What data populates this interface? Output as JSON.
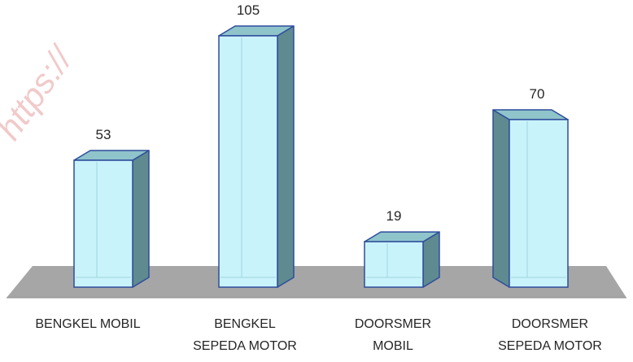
{
  "watermark": "https://",
  "chart_data": {
    "type": "bar",
    "style": "3d-column",
    "categories": [
      [
        "BENGKEL MOBIL"
      ],
      [
        "BENGKEL",
        "SEPEDA MOTOR"
      ],
      [
        "DOORSMER",
        "MOBIL"
      ],
      [
        "DOORSMER",
        "SEPEDA MOTOR"
      ]
    ],
    "values": [
      53,
      105,
      19,
      70
    ],
    "title": "",
    "xlabel": "",
    "ylabel": "",
    "ylim": [
      0,
      105
    ],
    "grid": false,
    "legend": "none",
    "colors": {
      "bar_front": "#c9f3fb",
      "bar_inner": "#dff9fd",
      "bar_stroke": "#2e4d9b",
      "bar_side": "#5f8b90",
      "bar_top": "#8fc4cb",
      "floor": "#a6a6a6",
      "label": "#262626"
    }
  }
}
